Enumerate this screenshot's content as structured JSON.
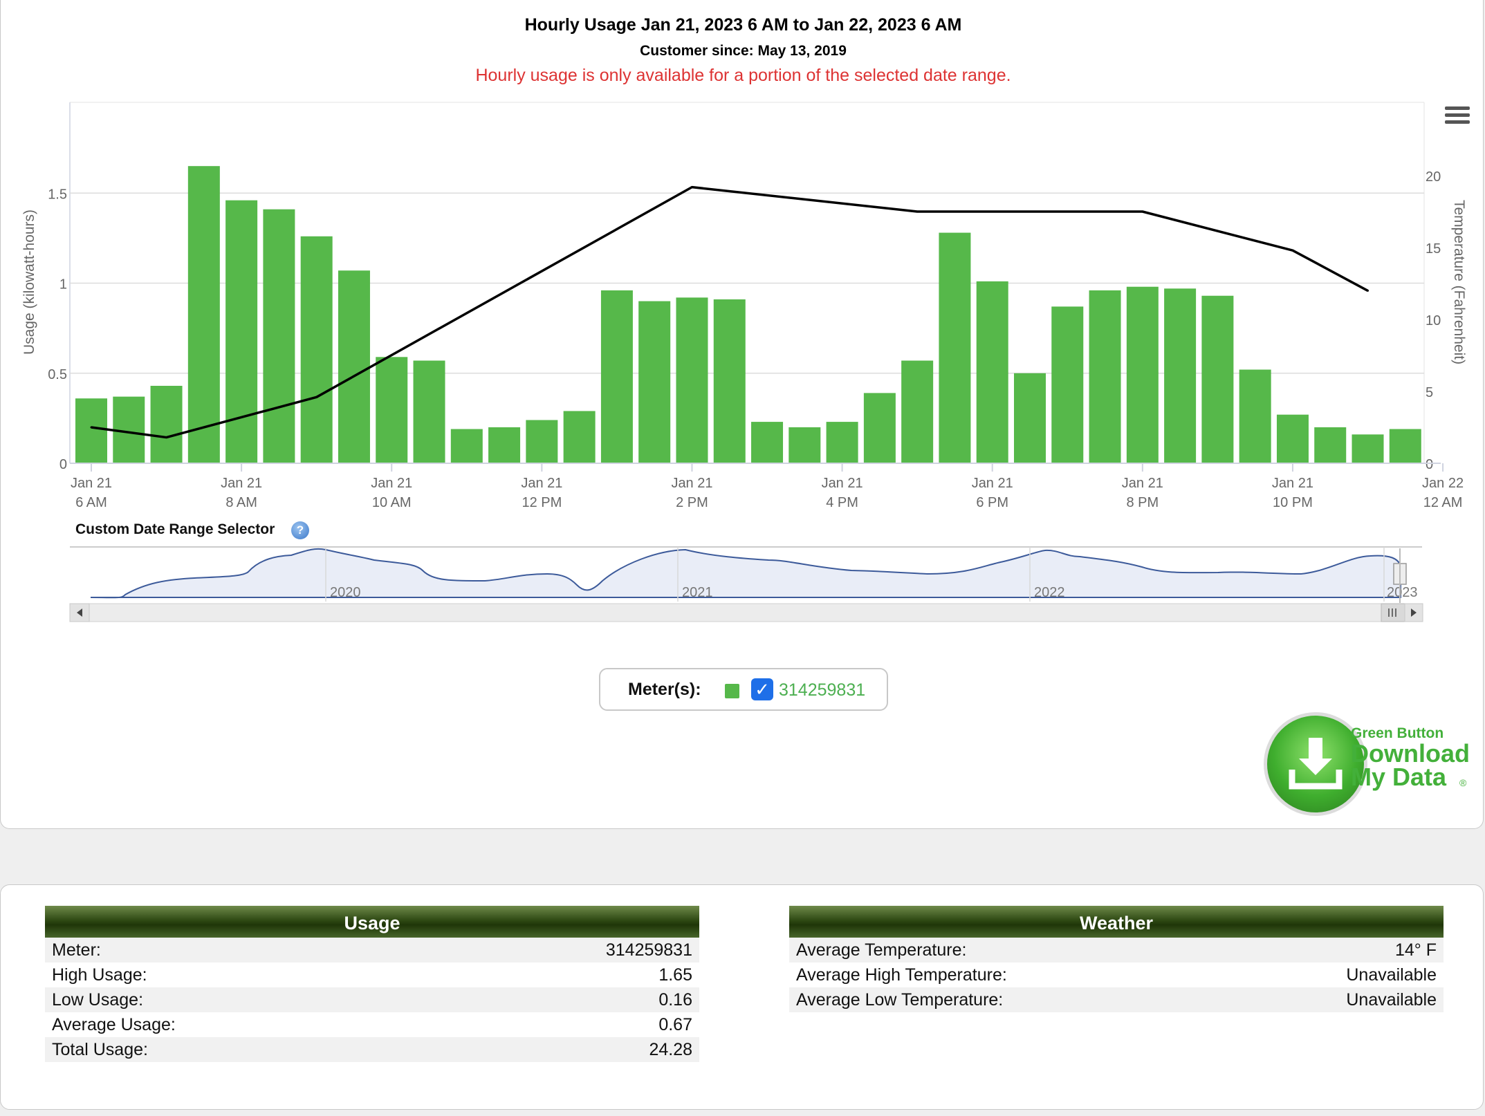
{
  "header": {
    "title": "Hourly Usage Jan 21, 2023 6 AM to Jan 22, 2023 6 AM",
    "subtitle": "Customer since: May 13, 2019",
    "note": "Hourly usage is only available for a portion of the selected date range."
  },
  "chart_data": {
    "type": "bar",
    "ylabel": "Usage (kilowatt-hours)",
    "ylabel_right": "Temperature (Fahrenheit)",
    "ylim": [
      0,
      2.0
    ],
    "y_ticks": [
      "0",
      "0.5",
      "1",
      "1.5"
    ],
    "y_right_lim": [
      0,
      25
    ],
    "y_right_ticks": [
      "0",
      "5",
      "10",
      "15",
      "20"
    ],
    "x_ticks": [
      [
        "Jan 21",
        "6 AM"
      ],
      [
        "Jan 21",
        "8 AM"
      ],
      [
        "Jan 21",
        "10 AM"
      ],
      [
        "Jan 21",
        "12 PM"
      ],
      [
        "Jan 21",
        "2 PM"
      ],
      [
        "Jan 21",
        "4 PM"
      ],
      [
        "Jan 21",
        "6 PM"
      ],
      [
        "Jan 21",
        "8 PM"
      ],
      [
        "Jan 21",
        "10 PM"
      ],
      [
        "Jan 22",
        "12 AM"
      ]
    ],
    "grid": true,
    "series": [
      {
        "kind": "bar",
        "color": "#56b84a",
        "start_hour": 6,
        "step_hours": 0.5,
        "values": [
          0.36,
          0.37,
          0.43,
          1.65,
          1.46,
          1.41,
          1.26,
          1.07,
          0.59,
          0.57,
          0.19,
          0.2,
          0.24,
          0.29,
          0.96,
          0.9,
          0.92,
          0.91,
          0.23,
          0.2,
          0.23,
          0.39,
          0.57,
          1.28,
          1.01,
          0.5,
          0.87,
          0.96,
          0.98,
          0.97,
          0.93,
          0.52,
          0.27,
          0.2,
          0.16,
          0.19
        ]
      },
      {
        "kind": "line",
        "color": "#000000",
        "x_hours": [
          6,
          7,
          9,
          14,
          17,
          20,
          22,
          23
        ],
        "values": [
          2.5,
          1.8,
          4.6,
          19.2,
          17.5,
          17.5,
          14.8,
          12.0
        ]
      }
    ],
    "navigator": {
      "labels": [
        "2020",
        "2021",
        "2022",
        "2023"
      ]
    }
  },
  "selector": {
    "label": "Custom Date Range Selector",
    "help": "?"
  },
  "meters": {
    "label": "Meter(s):",
    "id": "314259831",
    "swatch_color": "#56b84a"
  },
  "green_button": {
    "line1": "Green Button",
    "line2": "Download",
    "line3": "My Data",
    "reg": "®"
  },
  "usage_table": {
    "title": "Usage",
    "rows": [
      {
        "k": "Meter:",
        "v": "314259831"
      },
      {
        "k": "High Usage:",
        "v": "1.65"
      },
      {
        "k": "Low Usage:",
        "v": "0.16"
      },
      {
        "k": "Average Usage:",
        "v": "0.67"
      },
      {
        "k": "Total Usage:",
        "v": "24.28"
      }
    ]
  },
  "weather_table": {
    "title": "Weather",
    "rows": [
      {
        "k": "Average Temperature:",
        "v": "14° F"
      },
      {
        "k": "Average High Temperature:",
        "v": "Unavailable"
      },
      {
        "k": "Average Low Temperature:",
        "v": "Unavailable"
      }
    ]
  }
}
